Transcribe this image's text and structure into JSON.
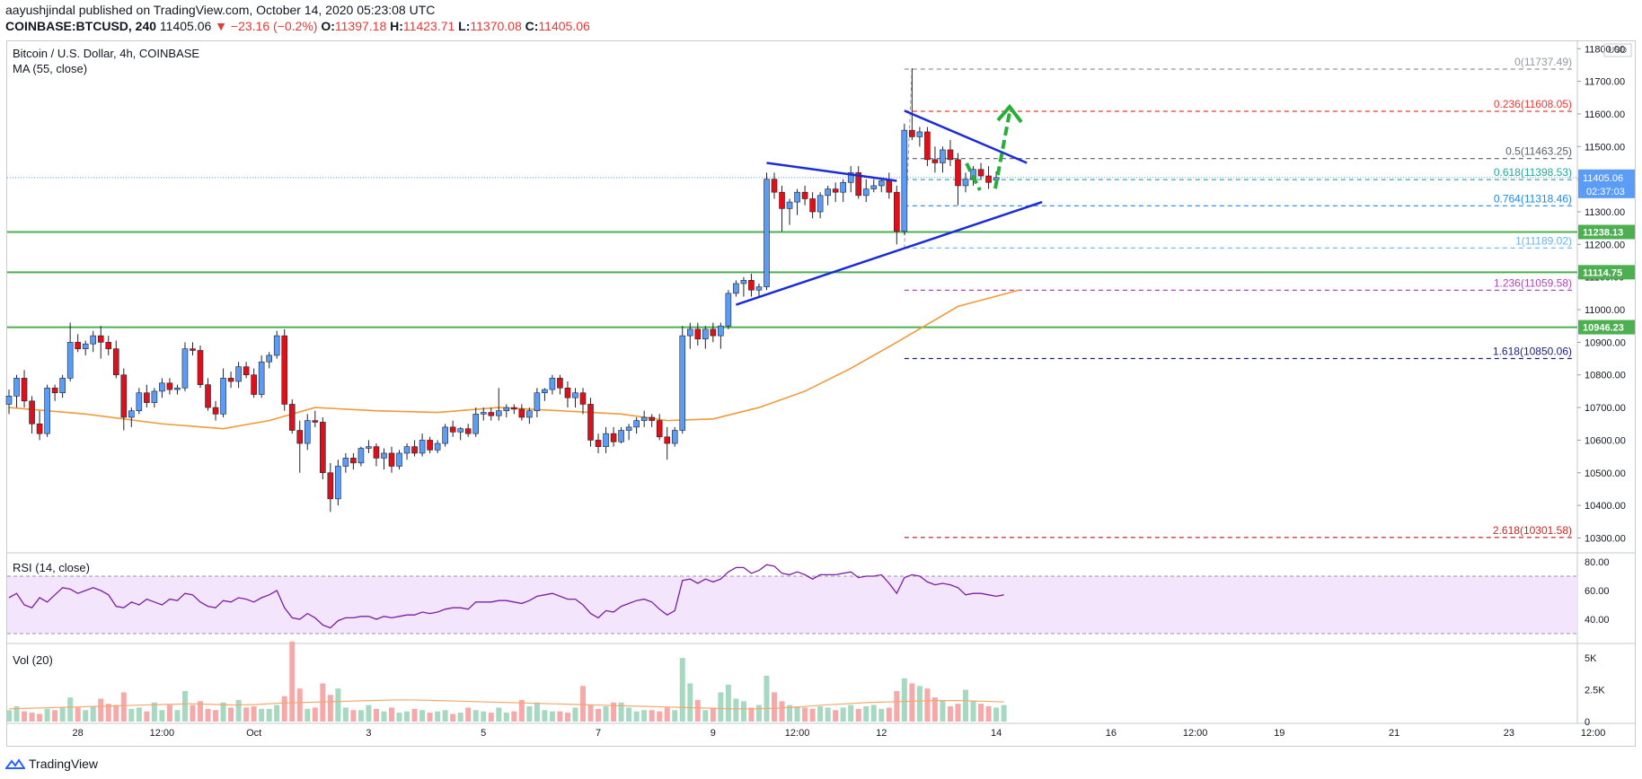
{
  "header": {
    "publisher_line": "aayushjindal published on TradingView.com, October 14, 2020 05:23:08 UTC",
    "symbol": "COINBASE:BTCUSD, 240",
    "last": "11405.06",
    "change": "▼ −23.16 (−0.2%)",
    "o_label": "O:",
    "o_val": "11397.18",
    "h_label": "H:",
    "h_val": "11423.71",
    "l_label": "L:",
    "l_val": "11370.08",
    "c_label": "C:",
    "c_val": "11405.06"
  },
  "chart_title": "Bitcoin / U.S. Dollar, 4h, COINBASE",
  "ma_label": "MA (55, close)",
  "currency_label": "USD",
  "rsi_title": "RSI (14, close)",
  "vol_title": "Vol (20)",
  "footer_brand": "TradingView",
  "colors": {
    "up": "#5b9cf6",
    "down": "#e0101a",
    "ma": "#f09a3a",
    "support": "#4caf50",
    "trend": "#1b2bd6",
    "arrow": "#27ae3a",
    "rsi": "#7b1fa2"
  },
  "chart_data": {
    "type": "candlestick",
    "price_axis": {
      "ylim": [
        10260,
        11820
      ],
      "ticks": [
        10300,
        10400,
        10500,
        10600,
        10700,
        10800,
        10900,
        11000,
        11100,
        11200,
        11300,
        11400,
        11500,
        11600,
        11700,
        11800
      ],
      "tick_labels": [
        "10300.00",
        "10400.00",
        "10500.00",
        "10600.00",
        "10700.00",
        "10800.00",
        "10900.00",
        "11000.00",
        "11100.00",
        "11200.00",
        "11300.00",
        "11400.00",
        "11500.00",
        "11600.00",
        "11700.00",
        "11800.00"
      ]
    },
    "time_axis": {
      "labels": [
        "28",
        "12:00",
        "Oct",
        "3",
        "5",
        "7",
        "9",
        "12:00",
        "12",
        "14",
        "16",
        "12:00",
        "19",
        "21",
        "23",
        "12:00"
      ],
      "label_bar_index": [
        9,
        20,
        32,
        47,
        62,
        77,
        92,
        103,
        114,
        129,
        144,
        155,
        166,
        181,
        196,
        207
      ],
      "bars_total": 216
    },
    "candles": [
      [
        10710,
        10755,
        10680,
        10735
      ],
      [
        10735,
        10800,
        10700,
        10790
      ],
      [
        10790,
        10815,
        10700,
        10720
      ],
      [
        10720,
        10735,
        10620,
        10650
      ],
      [
        10650,
        10690,
        10600,
        10620
      ],
      [
        10620,
        10770,
        10610,
        10760
      ],
      [
        10760,
        10770,
        10720,
        10745
      ],
      [
        10745,
        10800,
        10730,
        10790
      ],
      [
        10790,
        10960,
        10780,
        10900
      ],
      [
        10900,
        10925,
        10870,
        10880
      ],
      [
        10880,
        10905,
        10860,
        10895
      ],
      [
        10895,
        10935,
        10870,
        10920
      ],
      [
        10920,
        10950,
        10850,
        10900
      ],
      [
        10900,
        10920,
        10860,
        10880
      ],
      [
        10880,
        10905,
        10790,
        10800
      ],
      [
        10800,
        10820,
        10630,
        10670
      ],
      [
        10670,
        10700,
        10640,
        10690
      ],
      [
        10690,
        10760,
        10680,
        10745
      ],
      [
        10745,
        10770,
        10700,
        10715
      ],
      [
        10715,
        10760,
        10700,
        10750
      ],
      [
        10750,
        10790,
        10730,
        10775
      ],
      [
        10775,
        10790,
        10740,
        10755
      ],
      [
        10755,
        10770,
        10740,
        10760
      ],
      [
        10760,
        10900,
        10750,
        10880
      ],
      [
        10880,
        10900,
        10860,
        10875
      ],
      [
        10875,
        10890,
        10760,
        10770
      ],
      [
        10770,
        10790,
        10690,
        10700
      ],
      [
        10700,
        10720,
        10660,
        10680
      ],
      [
        10680,
        10820,
        10670,
        10790
      ],
      [
        10790,
        10810,
        10760,
        10780
      ],
      [
        10780,
        10840,
        10760,
        10825
      ],
      [
        10825,
        10840,
        10790,
        10800
      ],
      [
        10800,
        10820,
        10730,
        10740
      ],
      [
        10740,
        10860,
        10730,
        10840
      ],
      [
        10840,
        10870,
        10820,
        10860
      ],
      [
        10860,
        10935,
        10850,
        10920
      ],
      [
        10920,
        10940,
        10690,
        10710
      ],
      [
        10710,
        10725,
        10620,
        10630
      ],
      [
        10630,
        10660,
        10500,
        10590
      ],
      [
        10590,
        10680,
        10570,
        10660
      ],
      [
        10660,
        10690,
        10640,
        10655
      ],
      [
        10655,
        10670,
        10480,
        10500
      ],
      [
        10500,
        10530,
        10380,
        10420
      ],
      [
        10420,
        10540,
        10400,
        10520
      ],
      [
        10520,
        10560,
        10500,
        10545
      ],
      [
        10545,
        10560,
        10510,
        10530
      ],
      [
        10530,
        10580,
        10520,
        10575
      ],
      [
        10575,
        10600,
        10560,
        10580
      ],
      [
        10580,
        10590,
        10520,
        10545
      ],
      [
        10545,
        10575,
        10510,
        10560
      ],
      [
        10560,
        10580,
        10500,
        10520
      ],
      [
        10520,
        10570,
        10510,
        10560
      ],
      [
        10560,
        10590,
        10540,
        10580
      ],
      [
        10580,
        10600,
        10550,
        10560
      ],
      [
        10560,
        10620,
        10550,
        10600
      ],
      [
        10600,
        10610,
        10560,
        10570
      ],
      [
        10570,
        10600,
        10560,
        10590
      ],
      [
        10590,
        10650,
        10580,
        10640
      ],
      [
        10640,
        10660,
        10610,
        10625
      ],
      [
        10625,
        10640,
        10600,
        10635
      ],
      [
        10635,
        10650,
        10610,
        10620
      ],
      [
        10620,
        10700,
        10610,
        10680
      ],
      [
        10680,
        10700,
        10660,
        10685
      ],
      [
        10685,
        10700,
        10660,
        10675
      ],
      [
        10675,
        10760,
        10660,
        10690
      ],
      [
        10690,
        10710,
        10670,
        10700
      ],
      [
        10700,
        10710,
        10680,
        10695
      ],
      [
        10695,
        10710,
        10660,
        10670
      ],
      [
        10670,
        10700,
        10650,
        10690
      ],
      [
        10690,
        10760,
        10670,
        10745
      ],
      [
        10745,
        10760,
        10720,
        10755
      ],
      [
        10755,
        10800,
        10740,
        10790
      ],
      [
        10790,
        10800,
        10740,
        10760
      ],
      [
        10760,
        10780,
        10700,
        10730
      ],
      [
        10730,
        10760,
        10700,
        10745
      ],
      [
        10745,
        10760,
        10680,
        10710
      ],
      [
        10710,
        10730,
        10580,
        10600
      ],
      [
        10600,
        10620,
        10560,
        10580
      ],
      [
        10580,
        10640,
        10560,
        10620
      ],
      [
        10620,
        10640,
        10580,
        10595
      ],
      [
        10595,
        10640,
        10590,
        10630
      ],
      [
        10630,
        10650,
        10600,
        10640
      ],
      [
        10640,
        10670,
        10620,
        10660
      ],
      [
        10660,
        10690,
        10640,
        10670
      ],
      [
        10670,
        10680,
        10640,
        10660
      ],
      [
        10660,
        10680,
        10600,
        10610
      ],
      [
        10610,
        10640,
        10540,
        10590
      ],
      [
        10590,
        10640,
        10580,
        10630
      ],
      [
        10630,
        10950,
        10620,
        10920
      ],
      [
        10920,
        10960,
        10880,
        10940
      ],
      [
        10940,
        10960,
        10890,
        10910
      ],
      [
        10910,
        10950,
        10880,
        10940
      ],
      [
        10940,
        10960,
        10900,
        10920
      ],
      [
        10920,
        10960,
        10880,
        10950
      ],
      [
        10950,
        11060,
        10940,
        11050
      ],
      [
        11050,
        11090,
        11040,
        11080
      ],
      [
        11080,
        11100,
        11040,
        11090
      ],
      [
        11090,
        11110,
        11040,
        11060
      ],
      [
        11060,
        11080,
        11040,
        11070
      ],
      [
        11070,
        11420,
        11060,
        11400
      ],
      [
        11400,
        11420,
        11340,
        11360
      ],
      [
        11360,
        11380,
        11240,
        11310
      ],
      [
        11310,
        11340,
        11260,
        11330
      ],
      [
        11330,
        11370,
        11290,
        11360
      ],
      [
        11360,
        11380,
        11320,
        11340
      ],
      [
        11340,
        11360,
        11280,
        11300
      ],
      [
        11300,
        11360,
        11280,
        11350
      ],
      [
        11350,
        11380,
        11320,
        11370
      ],
      [
        11370,
        11390,
        11330,
        11360
      ],
      [
        11360,
        11400,
        11330,
        11390
      ],
      [
        11390,
        11440,
        11360,
        11420
      ],
      [
        11420,
        11440,
        11340,
        11350
      ],
      [
        11350,
        11400,
        11330,
        11370
      ],
      [
        11370,
        11400,
        11360,
        11380
      ],
      [
        11380,
        11400,
        11360,
        11395
      ],
      [
        11395,
        11420,
        11340,
        11360
      ],
      [
        11360,
        11380,
        11200,
        11240
      ],
      [
        11240,
        11570,
        11230,
        11550
      ],
      [
        11550,
        11740,
        11520,
        11530
      ],
      [
        11530,
        11560,
        11500,
        11545
      ],
      [
        11545,
        11560,
        11440,
        11460
      ],
      [
        11460,
        11500,
        11420,
        11450
      ],
      [
        11450,
        11500,
        11420,
        11490
      ],
      [
        11490,
        11520,
        11440,
        11460
      ],
      [
        11460,
        11480,
        11320,
        11380
      ],
      [
        11380,
        11420,
        11360,
        11400
      ],
      [
        11400,
        11440,
        11380,
        11430
      ],
      [
        11430,
        11450,
        11400,
        11410
      ],
      [
        11410,
        11440,
        11370,
        11390
      ],
      [
        11397.18,
        11423.71,
        11370.08,
        11405.06
      ]
    ],
    "ma55": [
      [
        0,
        10700
      ],
      [
        10,
        10680
      ],
      [
        20,
        10650
      ],
      [
        28,
        10635
      ],
      [
        34,
        10660
      ],
      [
        40,
        10700
      ],
      [
        48,
        10690
      ],
      [
        56,
        10685
      ],
      [
        64,
        10700
      ],
      [
        72,
        10690
      ],
      [
        80,
        10680
      ],
      [
        86,
        10660
      ],
      [
        92,
        10665
      ],
      [
        98,
        10700
      ],
      [
        104,
        10750
      ],
      [
        110,
        10820
      ],
      [
        116,
        10900
      ],
      [
        124,
        11010
      ],
      [
        132,
        11060
      ]
    ],
    "fibonacci": [
      {
        "ratio": "0",
        "price": 11737.49,
        "label": "0(11737.49)",
        "color": "#9598a1"
      },
      {
        "ratio": "0.236",
        "price": 11608.05,
        "label": "0.236(11608.05)",
        "color": "#e53935"
      },
      {
        "ratio": "0.5",
        "price": 11463.25,
        "label": "0.5(11463.25)",
        "color": "#5d606b"
      },
      {
        "ratio": "0.618",
        "price": 11398.53,
        "label": "0.618(11398.53)",
        "color": "#26a69a"
      },
      {
        "ratio": "0.764",
        "price": 11318.46,
        "label": "0.764(11318.46)",
        "color": "#1e88e5"
      },
      {
        "ratio": "1",
        "price": 11189.02,
        "label": "1(11189.02)",
        "color": "#64b5f6"
      },
      {
        "ratio": "1.236",
        "price": 11059.58,
        "label": "1.236(11059.58)",
        "color": "#ab47bc"
      },
      {
        "ratio": "1.618",
        "price": 10850.06,
        "label": "1.618(10850.06)",
        "color": "#1a237e"
      },
      {
        "ratio": "2.618",
        "price": 10301.58,
        "label": "2.618(10301.58)",
        "color": "#c62828"
      }
    ],
    "support_lines": [
      {
        "price": 11238.13,
        "label": "11238.13"
      },
      {
        "price": 11114.75,
        "label": "11114.75"
      },
      {
        "price": 10946.23,
        "label": "10946.23"
      }
    ],
    "trend_lines": [
      {
        "from": [
          99,
          11450
        ],
        "to": [
          116,
          11395
        ]
      },
      {
        "from": [
          95,
          11015
        ],
        "to": [
          135,
          11330
        ]
      },
      {
        "from": [
          117,
          11610
        ],
        "to": [
          133,
          11450
        ]
      }
    ],
    "current_price": {
      "price": 11405.06,
      "label": "11405.06",
      "countdown": "02:37:03"
    },
    "rsi": {
      "ylim": [
        25,
        85
      ],
      "bands": [
        70,
        30
      ],
      "ticks": [
        40,
        60,
        80
      ],
      "tick_labels": [
        "40.00",
        "60.00",
        "80.00"
      ],
      "values": [
        55,
        58,
        50,
        48,
        55,
        52,
        57,
        62,
        61,
        58,
        60,
        62,
        60,
        57,
        49,
        48,
        52,
        50,
        54,
        52,
        50,
        54,
        53,
        58,
        57,
        52,
        49,
        48,
        53,
        52,
        55,
        54,
        52,
        55,
        57,
        60,
        48,
        41,
        40,
        44,
        41,
        36,
        34,
        39,
        41,
        41,
        42,
        42,
        40,
        42,
        41,
        42,
        43,
        43,
        45,
        44,
        45,
        47,
        48,
        48,
        47,
        52,
        52,
        52,
        53,
        53,
        52,
        51,
        53,
        56,
        57,
        58,
        56,
        54,
        54,
        50,
        44,
        41,
        46,
        45,
        49,
        51,
        53,
        54,
        52,
        47,
        43,
        46,
        67,
        68,
        65,
        68,
        66,
        68,
        73,
        76,
        76,
        72,
        74,
        78,
        77,
        72,
        71,
        73,
        71,
        68,
        71,
        71,
        71,
        72,
        73,
        69,
        70,
        70,
        71,
        65,
        58,
        69,
        71,
        70,
        66,
        64,
        65,
        64,
        62,
        57,
        58,
        58,
        57,
        56,
        57
      ]
    },
    "volume": {
      "ylim": [
        0,
        6000
      ],
      "ticks": [
        0,
        2500,
        5000
      ],
      "tick_labels": [
        "0",
        "2.5K",
        "5K"
      ],
      "values": [
        900,
        1200,
        800,
        700,
        600,
        1000,
        900,
        1100,
        1900,
        1100,
        900,
        1200,
        1800,
        1400,
        1300,
        2300,
        1000,
        1100,
        800,
        1500,
        900,
        1300,
        900,
        2400,
        1300,
        1600,
        1000,
        900,
        1500,
        1100,
        1700,
        1100,
        1200,
        1000,
        1000,
        1300,
        2000,
        6300,
        2600,
        1000,
        1100,
        3000,
        2100,
        2600,
        1100,
        900,
        900,
        1300,
        1000,
        800,
        1100,
        700,
        800,
        1000,
        900,
        700,
        800,
        900,
        600,
        700,
        1100,
        900,
        800,
        700,
        1100,
        700,
        800,
        1700,
        1200,
        1500,
        900,
        800,
        800,
        700,
        1100,
        2800,
        1300,
        1000,
        1200,
        1500,
        1500,
        1100,
        800,
        900,
        900,
        800,
        1100,
        900,
        5000,
        3000,
        1700,
        900,
        1100,
        2300,
        2900,
        1800,
        1600,
        1100,
        1300,
        3600,
        2300,
        1600,
        1300,
        1200,
        1100,
        1000,
        1200,
        1100,
        900,
        1100,
        1300,
        1000,
        1200,
        1300,
        1000,
        1100,
        2400,
        3400,
        3000,
        2800,
        2600,
        1900,
        1700,
        1200,
        1400,
        2500,
        1600,
        1400,
        1200,
        1100,
        1300
      ],
      "ma20": [
        1000,
        1050,
        1100,
        1150,
        1200,
        1250,
        1300,
        1350,
        1400,
        1350,
        1300,
        1350,
        1450,
        1500,
        1550,
        1600,
        1650,
        1700,
        1700,
        1650,
        1600,
        1550,
        1500,
        1450,
        1400,
        1350,
        1300,
        1250,
        1200,
        1150,
        1100,
        1050,
        1000,
        1000,
        1050,
        1150,
        1300,
        1400,
        1500,
        1550,
        1600,
        1650,
        1650,
        1600,
        1550
      ]
    }
  }
}
